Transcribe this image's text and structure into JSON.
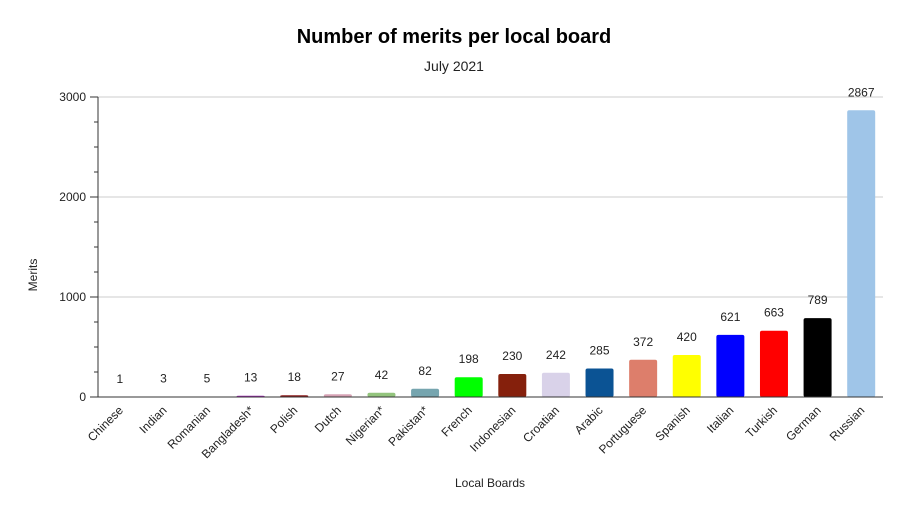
{
  "chart_data": {
    "type": "bar",
    "title": "Number of merits per local board",
    "subtitle": "July 2021",
    "xlabel": "Local Boards",
    "ylabel": "Merits",
    "ylim": [
      0,
      3000
    ],
    "yticks": [
      "0",
      "1000",
      "2000",
      "3000"
    ],
    "grid": true,
    "legend": "none",
    "categories": [
      "Chinese",
      "Indian",
      "Romanian",
      "Bangladesh*",
      "Polish",
      "Dutch",
      "Nigerian*",
      "Pakistan*",
      "French",
      "Indonesian",
      "Croatian",
      "Arabic",
      "Portuguese",
      "Spanish",
      "Italian",
      "Turkish",
      "German",
      "Russian"
    ],
    "values": [
      1,
      3,
      5,
      13,
      18,
      27,
      42,
      82,
      198,
      230,
      242,
      285,
      372,
      420,
      621,
      663,
      789,
      2867
    ],
    "data_labels": [
      "1",
      "3",
      "5",
      "13",
      "18",
      "27",
      "42",
      "82",
      "198",
      "230",
      "242",
      "285",
      "372",
      "420",
      "621",
      "663",
      "789",
      "2867"
    ],
    "colors": [
      "#2e7d32",
      "#1565c0",
      "#6d4c41",
      "#9c27b0",
      "#8b1a1a",
      "#d7a3b5",
      "#93c47d",
      "#76a5af",
      "#00ff00",
      "#85200c",
      "#d9d2e9",
      "#0b5394",
      "#dd7e6b",
      "#ffff00",
      "#0000ff",
      "#ff0000",
      "#000000",
      "#9fc5e8"
    ]
  }
}
